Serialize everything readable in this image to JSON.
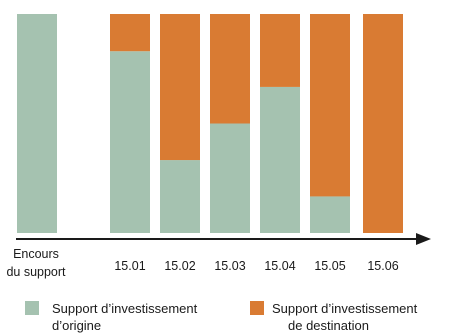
{
  "chart_data": {
    "type": "bar",
    "stacked": true,
    "categories": [
      "Encours du support",
      "15.01",
      "15.02",
      "15.03",
      "15.04",
      "15.05",
      "15.06"
    ],
    "category_lines": [
      [
        "Encours",
        "du support"
      ],
      [
        "15.01"
      ],
      [
        "15.02"
      ],
      [
        "15.03"
      ],
      [
        "15.04"
      ],
      [
        "15.05"
      ],
      [
        "15.06"
      ]
    ],
    "series": [
      {
        "name": "Support d’investissement d’origine",
        "legend_lines": [
          "Support d’investissement",
          "d’origine"
        ],
        "color": "#a5c2b0",
        "values": [
          100,
          83,
          33.3,
          50,
          66.7,
          16.7,
          0
        ]
      },
      {
        "name": "Support d’investissement de destination",
        "legend_lines": [
          "Support d’investissement",
          "de destination"
        ],
        "color": "#d97b33",
        "values": [
          0,
          17,
          66.7,
          50,
          33.3,
          83.3,
          100
        ]
      }
    ],
    "ylim": [
      0,
      100
    ],
    "axis_color": "#1a1a1a",
    "grid": false,
    "legend_position": "bottom"
  }
}
